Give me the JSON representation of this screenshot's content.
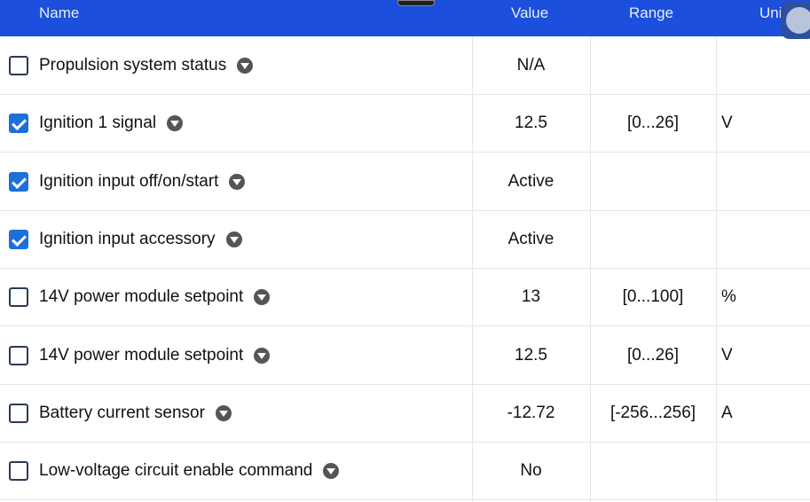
{
  "header": {
    "name": "Name",
    "value": "Value",
    "range": "Range",
    "unit": "Unit"
  },
  "colors": {
    "header": "#1b4fdc",
    "checked": "#1e6fd9"
  },
  "rows": [
    {
      "name": "Propulsion system status",
      "checked": false,
      "value": "N/A",
      "range": "",
      "unit": ""
    },
    {
      "name": "Ignition 1 signal",
      "checked": true,
      "value": "12.5",
      "range": "[0...26]",
      "unit": "V"
    },
    {
      "name": "Ignition input off/on/start",
      "checked": true,
      "value": "Active",
      "range": "",
      "unit": ""
    },
    {
      "name": "Ignition input accessory",
      "checked": true,
      "value": "Active",
      "range": "",
      "unit": ""
    },
    {
      "name": "14V power module setpoint",
      "checked": false,
      "value": "13",
      "range": "[0...100]",
      "unit": "%"
    },
    {
      "name": "14V power module setpoint",
      "checked": false,
      "value": "12.5",
      "range": "[0...26]",
      "unit": "V"
    },
    {
      "name": "Battery current sensor",
      "checked": false,
      "value": "-12.72",
      "range": "[-256...256]",
      "unit": "A"
    },
    {
      "name": "Low-voltage circuit enable command",
      "checked": false,
      "value": "No",
      "range": "",
      "unit": ""
    }
  ]
}
